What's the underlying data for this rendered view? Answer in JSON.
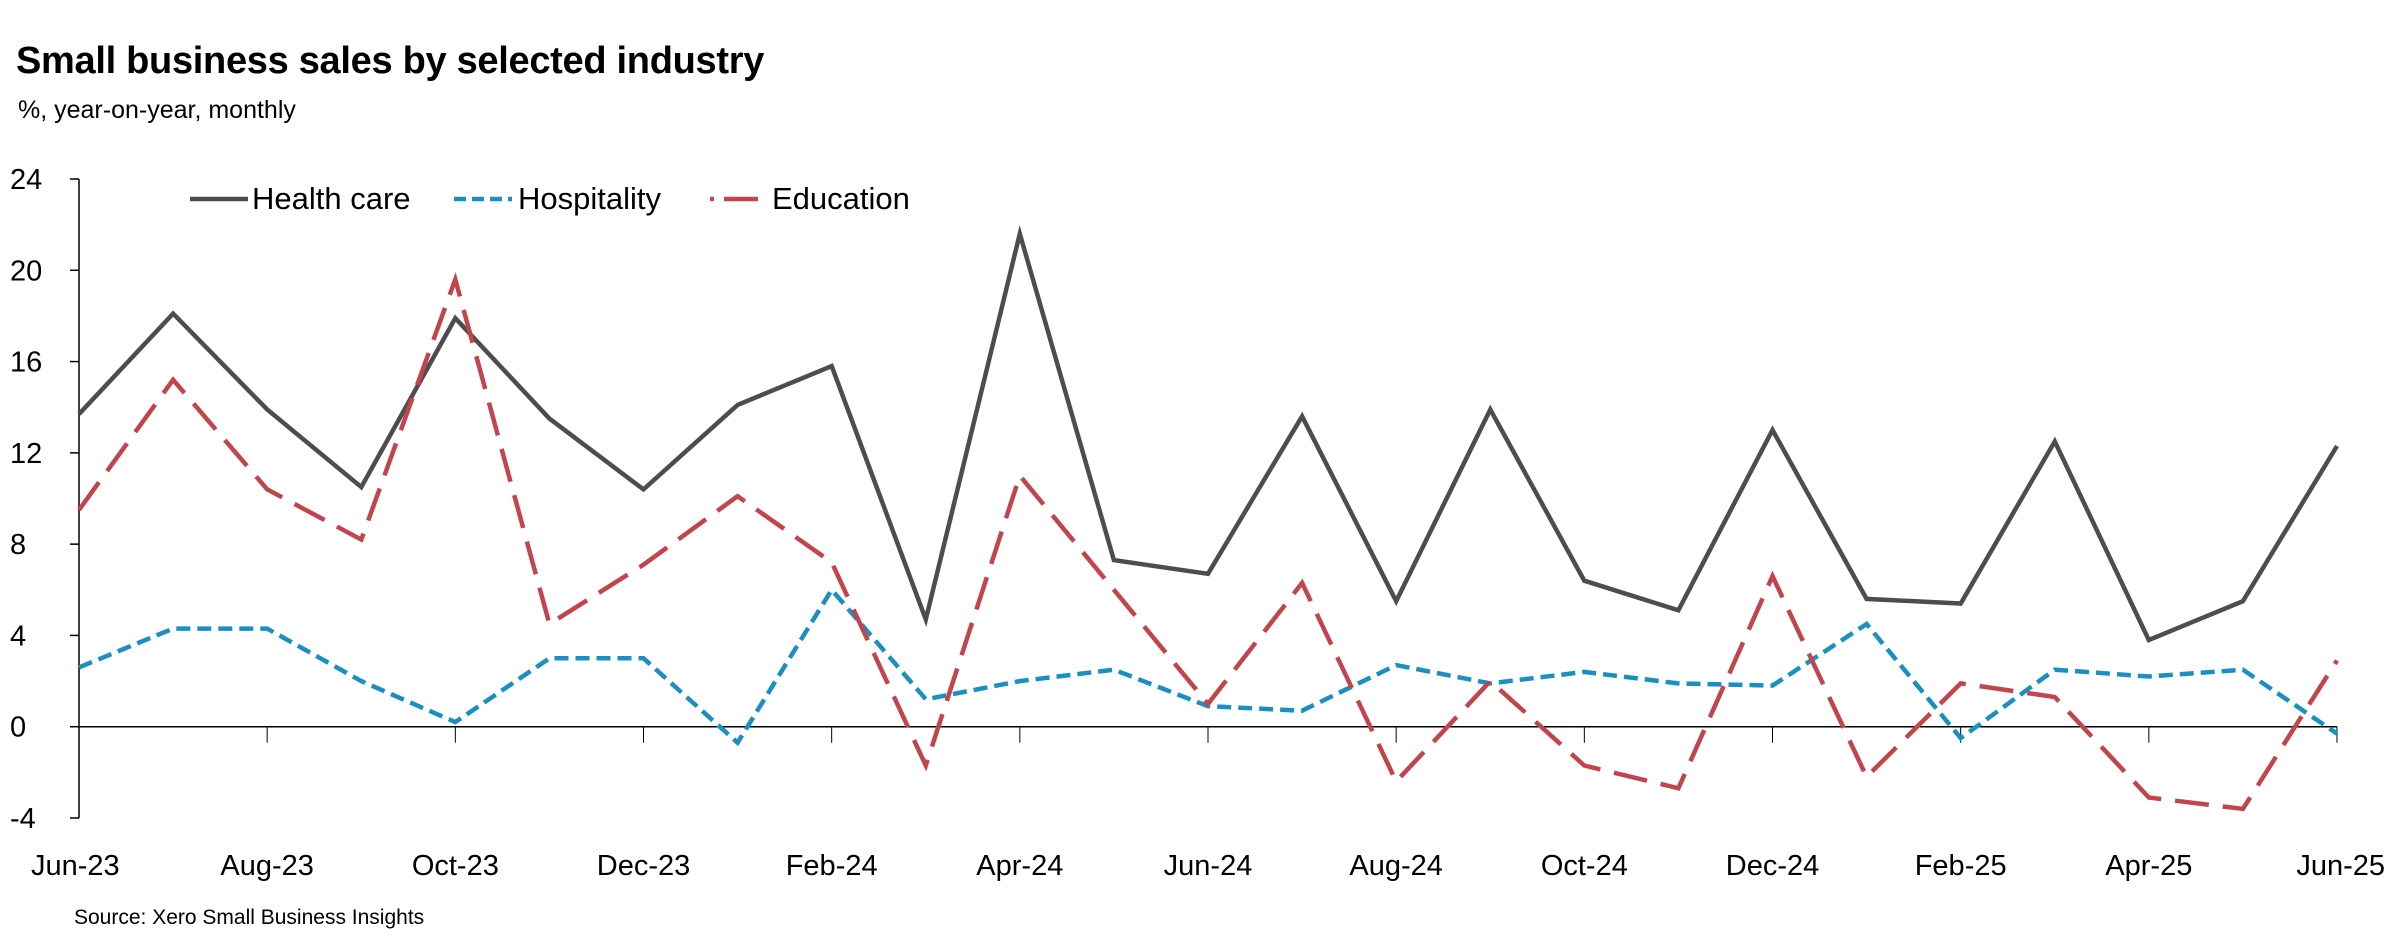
{
  "title": "Small business sales by selected industry",
  "subtitle": "%, year-on-year, monthly",
  "source": "Source: Xero Small Business Insights",
  "chart_data": {
    "type": "line",
    "x": [
      "Jun-23",
      "Jul-23",
      "Aug-23",
      "Sep-23",
      "Oct-23",
      "Nov-23",
      "Dec-23",
      "Jan-24",
      "Feb-24",
      "Mar-24",
      "Apr-24",
      "May-24",
      "Jun-24",
      "Jul-24",
      "Aug-24",
      "Sep-24",
      "Oct-24",
      "Nov-24",
      "Dec-24",
      "Jan-25",
      "Feb-25",
      "Mar-25",
      "Apr-25",
      "May-25",
      "Jun-25"
    ],
    "x_tick_labels": [
      "Jun-23",
      "Aug-23",
      "Oct-23",
      "Dec-23",
      "Feb-24",
      "Apr-24",
      "Jun-24",
      "Aug-24",
      "Oct-24",
      "Dec-24",
      "Feb-25",
      "Apr-25",
      "Jun-25"
    ],
    "ylim": [
      -4,
      24
    ],
    "y_ticks": [
      -4,
      0,
      4,
      8,
      12,
      16,
      20,
      24
    ],
    "grid": false,
    "legend_position": "top-left",
    "series": [
      {
        "name": "Health care",
        "color": "#4d4d4f",
        "dash": "solid",
        "values": [
          13.7,
          18.1,
          13.9,
          10.5,
          17.9,
          13.5,
          10.4,
          14.1,
          15.8,
          4.7,
          21.6,
          7.3,
          6.7,
          13.6,
          5.5,
          13.9,
          6.4,
          5.1,
          13.0,
          5.6,
          5.4,
          12.5,
          3.8,
          5.5,
          12.3
        ]
      },
      {
        "name": "Hospitality",
        "color": "#1b8fc0",
        "dash": "short",
        "values": [
          2.6,
          4.3,
          4.3,
          2.0,
          0.2,
          3.0,
          3.0,
          -0.7,
          6.0,
          1.2,
          2.0,
          2.5,
          0.9,
          0.7,
          2.7,
          1.9,
          2.4,
          1.9,
          1.8,
          4.5,
          -0.5,
          2.5,
          2.2,
          2.5,
          -0.3
        ]
      },
      {
        "name": "Education",
        "color": "#c0454c",
        "dash": "long",
        "values": [
          9.5,
          15.2,
          10.4,
          8.2,
          19.6,
          4.5,
          7.1,
          10.1,
          7.2,
          -1.7,
          11.0,
          6.0,
          1.0,
          6.3,
          -2.4,
          2.0,
          -1.7,
          -2.7,
          6.6,
          -2.2,
          1.9,
          1.3,
          -3.1,
          -3.6,
          2.9
        ]
      }
    ]
  }
}
